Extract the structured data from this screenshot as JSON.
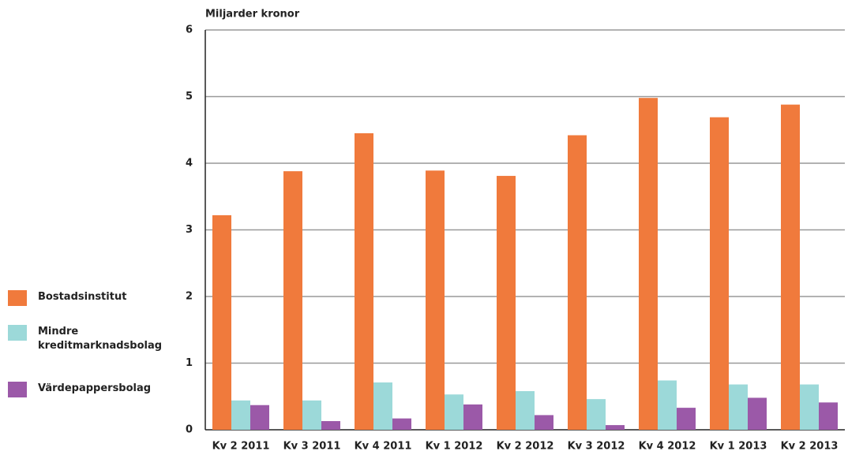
{
  "chart_data": {
    "type": "bar",
    "y_label": "Miljarder kronor",
    "categories": [
      "Kv 2 2011",
      "Kv 3 2011",
      "Kv 4 2011",
      "Kv 1 2012",
      "Kv 2 2012",
      "Kv 3 2012",
      "Kv 4 2012",
      "Kv 1 2013",
      "Kv 2 2013"
    ],
    "series": [
      {
        "name": "Bostadsinstitut",
        "color": "#f07a3c",
        "values": [
          3.22,
          3.88,
          4.45,
          3.89,
          3.81,
          4.42,
          4.98,
          4.69,
          4.88
        ]
      },
      {
        "name": "Mindre kreditmarknadsbolag",
        "color": "#9cd9d9",
        "values": [
          0.44,
          0.44,
          0.71,
          0.53,
          0.58,
          0.46,
          0.74,
          0.68,
          0.68
        ]
      },
      {
        "name": "Värdepappersbolag",
        "color": "#9b59a8",
        "values": [
          0.37,
          0.13,
          0.17,
          0.38,
          0.22,
          0.07,
          0.33,
          0.48,
          0.41
        ]
      }
    ],
    "ylim": [
      0,
      6
    ],
    "yticks": [
      0,
      1,
      2,
      3,
      4,
      5,
      6
    ],
    "grid": true,
    "legend": "left"
  }
}
